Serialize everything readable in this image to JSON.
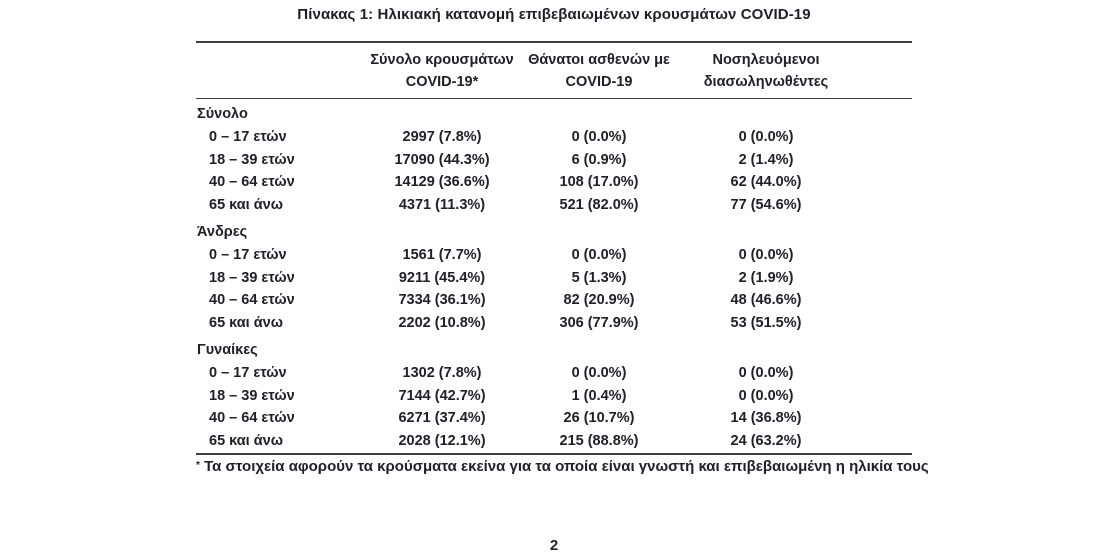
{
  "page": {
    "title": "Πίνακας 1: Ηλικιακή κατανομή επιβεβαιωμένων κρουσμάτων COVID-19",
    "footnote_marker": "*",
    "footnote_text": "Τα στοιχεία αφορούν τα κρούσματα εκείνα για τα οποία είναι γνωστή και επιβεβαιωμένη η ηλικία τους",
    "page_number": "2"
  },
  "colors": {
    "text": "#20202a",
    "rule": "#3f3f3f"
  },
  "table": {
    "column_headers": [
      {
        "line1": "Σύνολο κρουσμάτων",
        "line2": "COVID-19*"
      },
      {
        "line1": "Θάνατοι ασθενών με",
        "line2": "COVID-19"
      },
      {
        "line1": "Νοσηλευόμενοι",
        "line2": "διασωληνωθέντες"
      }
    ],
    "sections": [
      {
        "label": "Σύνολο",
        "rows": [
          {
            "age": "0 – 17 ετών",
            "cases": "2997 (7.8%)",
            "deaths": "0 (0.0%)",
            "intubated": "0 (0.0%)"
          },
          {
            "age": "18 – 39 ετών",
            "cases": "17090 (44.3%)",
            "deaths": "6 (0.9%)",
            "intubated": "2 (1.4%)"
          },
          {
            "age": "40 – 64 ετών",
            "cases": "14129 (36.6%)",
            "deaths": "108 (17.0%)",
            "intubated": "62 (44.0%)"
          },
          {
            "age": "65 και άνω",
            "cases": "4371 (11.3%)",
            "deaths": "521 (82.0%)",
            "intubated": "77 (54.6%)"
          }
        ]
      },
      {
        "label": "Άνδρες",
        "rows": [
          {
            "age": "0 – 17 ετών",
            "cases": "1561 (7.7%)",
            "deaths": "0 (0.0%)",
            "intubated": "0 (0.0%)"
          },
          {
            "age": "18 – 39 ετών",
            "cases": "9211 (45.4%)",
            "deaths": "5 (1.3%)",
            "intubated": "2 (1.9%)"
          },
          {
            "age": "40 – 64 ετών",
            "cases": "7334 (36.1%)",
            "deaths": "82 (20.9%)",
            "intubated": "48 (46.6%)"
          },
          {
            "age": "65 και άνω",
            "cases": "2202 (10.8%)",
            "deaths": "306 (77.9%)",
            "intubated": "53 (51.5%)"
          }
        ]
      },
      {
        "label": "Γυναίκες",
        "rows": [
          {
            "age": "0 – 17 ετών",
            "cases": "1302 (7.8%)",
            "deaths": "0 (0.0%)",
            "intubated": "0 (0.0%)"
          },
          {
            "age": "18 – 39 ετών",
            "cases": "7144 (42.7%)",
            "deaths": "1 (0.4%)",
            "intubated": "0 (0.0%)"
          },
          {
            "age": "40 – 64 ετών",
            "cases": "6271 (37.4%)",
            "deaths": "26 (10.7%)",
            "intubated": "14 (36.8%)"
          },
          {
            "age": "65 και άνω",
            "cases": "2028 (12.1%)",
            "deaths": "215 (88.8%)",
            "intubated": "24 (63.2%)"
          }
        ]
      }
    ]
  }
}
